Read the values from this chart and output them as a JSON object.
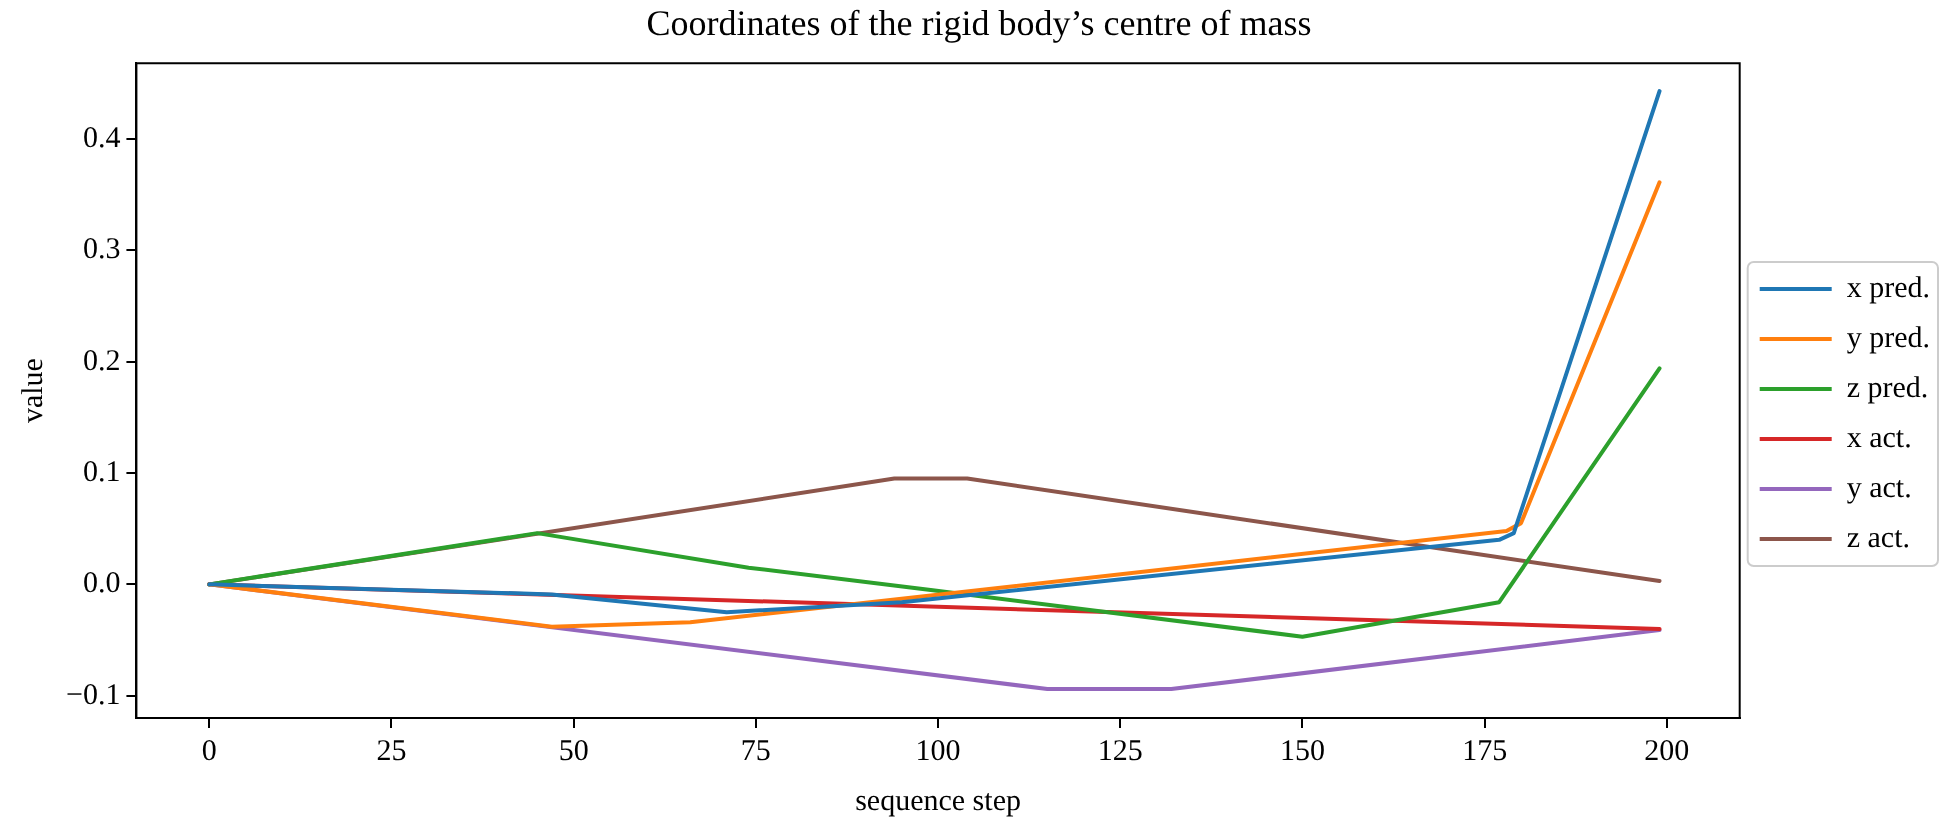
{
  "chart_data": {
    "type": "line",
    "title": "Coordinates of the rigid body’s centre of mass",
    "xlabel": "sequence step",
    "ylabel": "value",
    "xlim": [
      -10,
      210
    ],
    "xticks": [
      0,
      25,
      50,
      75,
      100,
      125,
      150,
      175,
      200
    ],
    "ylim": [
      -0.12,
      0.468
    ],
    "yticks": [
      {
        "value": -0.1,
        "label": "−0.1"
      },
      {
        "value": 0,
        "label": "0.0"
      },
      0.1,
      0.2,
      0.3,
      0.4
    ],
    "grid": false,
    "legend": "right",
    "marker": "none",
    "line_style": "solid",
    "series": [
      {
        "name": "x pred.",
        "color": "#1f77b4",
        "x": [
          0,
          47,
          71,
          95,
          177,
          179,
          199
        ],
        "values": [
          0,
          -0.009,
          -0.025,
          -0.016,
          0.04,
          0.046,
          0.443
        ]
      },
      {
        "name": "y pred.",
        "color": "#ff7f0e",
        "x": [
          0,
          47,
          66,
          99,
          178,
          180,
          199
        ],
        "values": [
          0,
          -0.038,
          -0.034,
          -0.01,
          0.048,
          0.055,
          0.361
        ]
      },
      {
        "name": "z pred.",
        "color": "#2ca02c",
        "x": [
          0,
          45,
          74,
          99,
          150,
          177,
          199
        ],
        "values": [
          0,
          0.046,
          0.015,
          -0.005,
          -0.047,
          -0.016,
          0.194
        ]
      },
      {
        "name": "x act.",
        "color": "#d62728",
        "x": [
          0,
          199
        ],
        "values": [
          0,
          -0.04
        ]
      },
      {
        "name": "y act.",
        "color": "#9467bd",
        "x": [
          0,
          115,
          132,
          199
        ],
        "values": [
          0,
          -0.094,
          -0.094,
          -0.041
        ]
      },
      {
        "name": "z act.",
        "color": "#8c564b",
        "x": [
          0,
          94,
          104,
          199
        ],
        "values": [
          0,
          0.095,
          0.095,
          0.003
        ]
      }
    ]
  }
}
